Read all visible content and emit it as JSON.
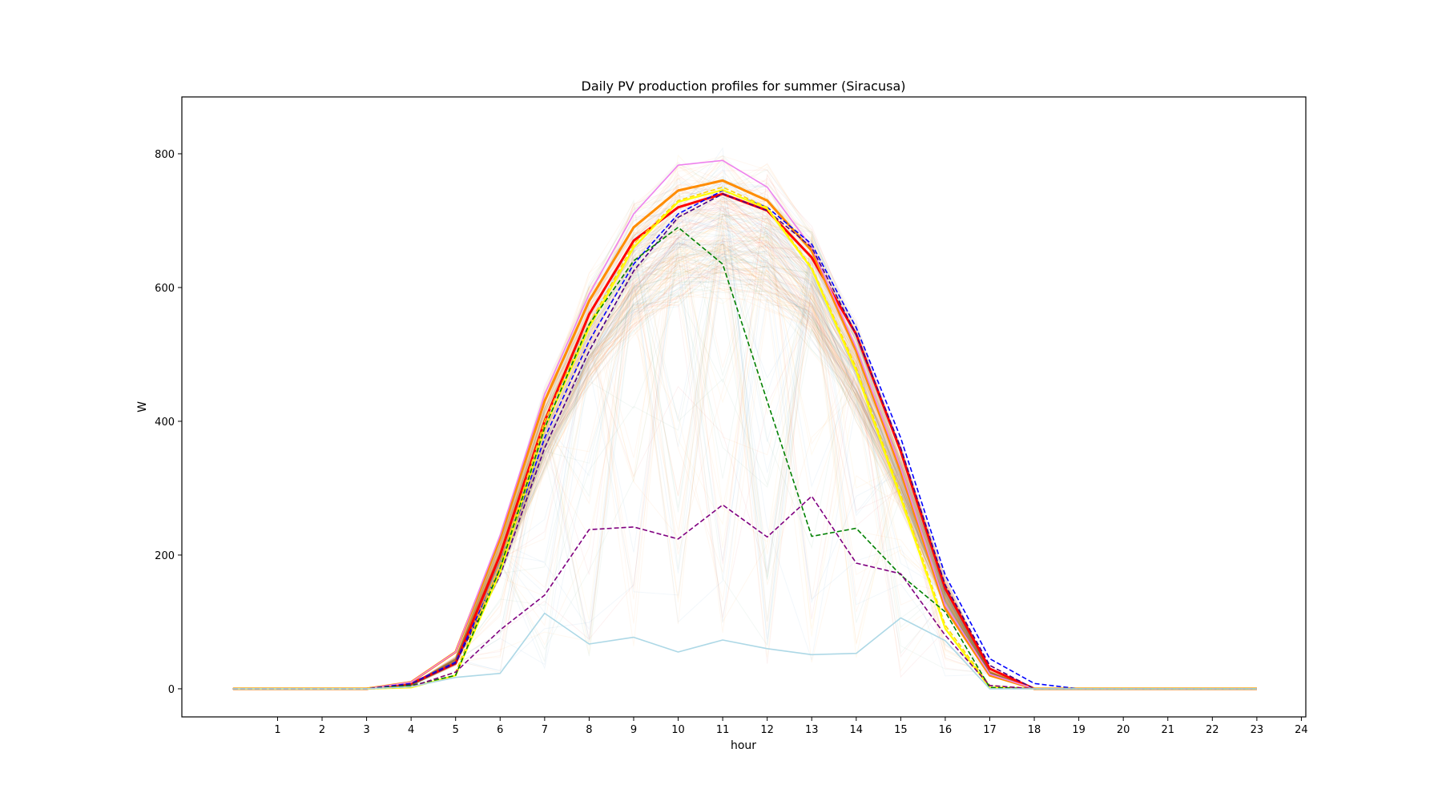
{
  "chart_data": {
    "type": "line",
    "title": "Daily PV production profiles for summer (Siracusa)",
    "xlabel": "hour",
    "ylabel": "W",
    "xlim": [
      -1.15,
      24.1
    ],
    "ylim": [
      -42,
      885
    ],
    "xticks": [
      1,
      2,
      3,
      4,
      5,
      6,
      7,
      8,
      9,
      10,
      11,
      12,
      13,
      14,
      15,
      16,
      17,
      18,
      19,
      20,
      21,
      22,
      23,
      24
    ],
    "yticks": [
      0,
      200,
      400,
      600,
      800
    ],
    "x": [
      0,
      1,
      2,
      3,
      4,
      5,
      6,
      7,
      8,
      9,
      10,
      11,
      12,
      13,
      14,
      15,
      16,
      17,
      18,
      19,
      20,
      21,
      22,
      23
    ],
    "grid": false,
    "legend": "none",
    "background_profiles": {
      "description_count": 800,
      "colors": [
        "#ff7f0e",
        "#ff8c00",
        "#ffa500",
        "#2e8b57",
        "#1f77b4",
        "#d62728"
      ],
      "base_shape": [
        0,
        0,
        0,
        0,
        6,
        45,
        215,
        420,
        575,
        680,
        735,
        750,
        725,
        650,
        520,
        345,
        155,
        25,
        0,
        0,
        0,
        0,
        0,
        0
      ]
    },
    "series": [
      {
        "color": "#ff0000",
        "style": "solid",
        "width": 3,
        "values": [
          0,
          0,
          0,
          0,
          8,
          38,
          200,
          400,
          560,
          670,
          720,
          740,
          715,
          645,
          530,
          355,
          150,
          30,
          0,
          0,
          0,
          0,
          0,
          0
        ]
      },
      {
        "color": "#ff8c00",
        "style": "solid",
        "width": 3,
        "values": [
          0,
          0,
          0,
          0,
          10,
          55,
          225,
          430,
          580,
          690,
          745,
          760,
          730,
          655,
          505,
          325,
          120,
          20,
          0,
          0,
          0,
          0,
          0,
          0
        ]
      },
      {
        "color": "#ee82ee",
        "style": "solid",
        "width": 1.6,
        "values": [
          0,
          0,
          0,
          0,
          10,
          55,
          230,
          440,
          590,
          710,
          783,
          790,
          750,
          660,
          510,
          330,
          125,
          22,
          0,
          0,
          0,
          0,
          0,
          0
        ]
      },
      {
        "color": "#0000ff",
        "style": "dashed",
        "width": 1.6,
        "values": [
          0,
          0,
          0,
          0,
          8,
          40,
          180,
          375,
          520,
          635,
          710,
          745,
          720,
          665,
          540,
          375,
          170,
          45,
          8,
          0,
          0,
          0,
          0,
          0
        ]
      },
      {
        "color": "#4b0082",
        "style": "dashed",
        "width": 1.6,
        "values": [
          0,
          0,
          0,
          0,
          7,
          38,
          170,
          360,
          505,
          625,
          705,
          740,
          715,
          660,
          530,
          360,
          155,
          35,
          0,
          0,
          0,
          0,
          0,
          0
        ]
      },
      {
        "color": "#ffd700",
        "style": "dashed",
        "width": 1.6,
        "values": [
          0,
          0,
          0,
          0,
          3,
          25,
          185,
          400,
          545,
          665,
          730,
          750,
          720,
          630,
          480,
          290,
          95,
          5,
          0,
          0,
          0,
          0,
          0,
          0
        ]
      },
      {
        "color": "#ffff00",
        "style": "solid",
        "width": 2.2,
        "values": [
          0,
          0,
          0,
          0,
          2,
          20,
          175,
          390,
          540,
          660,
          728,
          746,
          718,
          628,
          475,
          285,
          90,
          2,
          0,
          0,
          0,
          0,
          0,
          0
        ]
      },
      {
        "color": "#008000",
        "style": "dashed",
        "width": 1.6,
        "values": [
          0,
          0,
          0,
          0,
          5,
          20,
          180,
          390,
          545,
          640,
          690,
          635,
          430,
          228,
          240,
          170,
          115,
          2,
          0,
          0,
          0,
          0,
          0,
          0
        ]
      },
      {
        "color": "#800080",
        "style": "dashed",
        "width": 1.6,
        "values": [
          0,
          0,
          0,
          0,
          3,
          25,
          88,
          140,
          238,
          242,
          224,
          275,
          227,
          288,
          188,
          172,
          80,
          5,
          0,
          0,
          0,
          0,
          0,
          0
        ]
      },
      {
        "color": "#add8e6",
        "style": "solid",
        "width": 1.6,
        "values": [
          0,
          0,
          0,
          0,
          3,
          17,
          23,
          113,
          67,
          77,
          55,
          73,
          60,
          51,
          53,
          106,
          72,
          0,
          0,
          0,
          0,
          0,
          0,
          0
        ]
      }
    ]
  }
}
